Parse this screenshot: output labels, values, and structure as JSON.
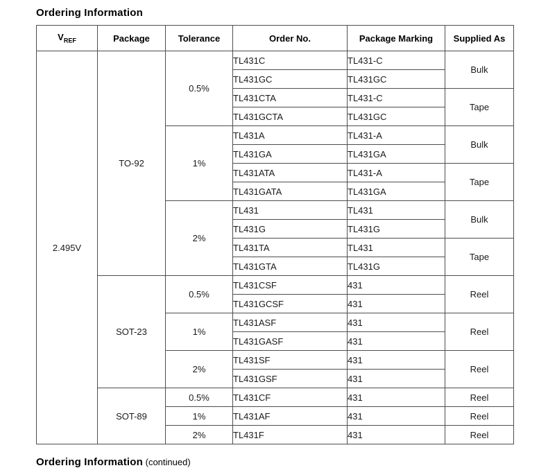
{
  "title": "Ordering Information",
  "footer": {
    "bold": "Ordering Information",
    "regular": "(continued)"
  },
  "colors": {
    "border_dark": "#4d4d4d",
    "border_light": "#b3b3b3",
    "text": "#1a1a1a"
  },
  "table": {
    "headers": {
      "vref_main": "V",
      "vref_sub": "REF",
      "package": "Package",
      "tolerance": "Tolerance",
      "order_no": "Order No.",
      "package_marking": "Package Marking",
      "supplied_as": "Supplied As"
    },
    "vref": "2.495V",
    "sections": [
      {
        "package": "TO-92",
        "tolerance_groups": [
          {
            "tolerance": "0.5%",
            "supply_groups": [
              {
                "supplied_as": "Bulk",
                "parts": [
                  {
                    "order_no": "TL431C",
                    "marking": "TL431-C"
                  },
                  {
                    "order_no": "TL431GC",
                    "marking": "TL431GC"
                  }
                ]
              },
              {
                "supplied_as": "Tape",
                "parts": [
                  {
                    "order_no": "TL431CTA",
                    "marking": "TL431-C"
                  },
                  {
                    "order_no": "TL431GCTA",
                    "marking": "TL431GC"
                  }
                ]
              }
            ]
          },
          {
            "tolerance": "1%",
            "supply_groups": [
              {
                "supplied_as": "Bulk",
                "parts": [
                  {
                    "order_no": "TL431A",
                    "marking": "TL431-A"
                  },
                  {
                    "order_no": "TL431GA",
                    "marking": "TL431GA"
                  }
                ]
              },
              {
                "supplied_as": "Tape",
                "parts": [
                  {
                    "order_no": "TL431ATA",
                    "marking": "TL431-A"
                  },
                  {
                    "order_no": "TL431GATA",
                    "marking": "TL431GA"
                  }
                ]
              }
            ]
          },
          {
            "tolerance": "2%",
            "supply_groups": [
              {
                "supplied_as": "Bulk",
                "parts": [
                  {
                    "order_no": "TL431",
                    "marking": "TL431"
                  },
                  {
                    "order_no": "TL431G",
                    "marking": "TL431G"
                  }
                ]
              },
              {
                "supplied_as": "Tape",
                "parts": [
                  {
                    "order_no": "TL431TA",
                    "marking": "TL431"
                  },
                  {
                    "order_no": "TL431GTA",
                    "marking": "TL431G"
                  }
                ]
              }
            ]
          }
        ]
      },
      {
        "package": "SOT-23",
        "tolerance_groups": [
          {
            "tolerance": "0.5%",
            "supply_groups": [
              {
                "supplied_as": "Reel",
                "parts": [
                  {
                    "order_no": "TL431CSF",
                    "marking": "431"
                  },
                  {
                    "order_no": "TL431GCSF",
                    "marking": "431"
                  }
                ]
              }
            ]
          },
          {
            "tolerance": "1%",
            "supply_groups": [
              {
                "supplied_as": "Reel",
                "parts": [
                  {
                    "order_no": "TL431ASF",
                    "marking": "431"
                  },
                  {
                    "order_no": "TL431GASF",
                    "marking": "431"
                  }
                ]
              }
            ]
          },
          {
            "tolerance": "2%",
            "supply_groups": [
              {
                "supplied_as": "Reel",
                "parts": [
                  {
                    "order_no": "TL431SF",
                    "marking": "431"
                  },
                  {
                    "order_no": "TL431GSF",
                    "marking": "431"
                  }
                ]
              }
            ]
          }
        ]
      },
      {
        "package": "SOT-89",
        "tolerance_groups": [
          {
            "tolerance": "0.5%",
            "supply_groups": [
              {
                "supplied_as": "Reel",
                "parts": [
                  {
                    "order_no": "TL431CF",
                    "marking": "431"
                  }
                ]
              }
            ]
          },
          {
            "tolerance": "1%",
            "supply_groups": [
              {
                "supplied_as": "Reel",
                "parts": [
                  {
                    "order_no": "TL431AF",
                    "marking": "431"
                  }
                ]
              }
            ]
          },
          {
            "tolerance": "2%",
            "supply_groups": [
              {
                "supplied_as": "Reel",
                "parts": [
                  {
                    "order_no": "TL431F",
                    "marking": "431"
                  }
                ]
              }
            ]
          }
        ]
      }
    ]
  }
}
